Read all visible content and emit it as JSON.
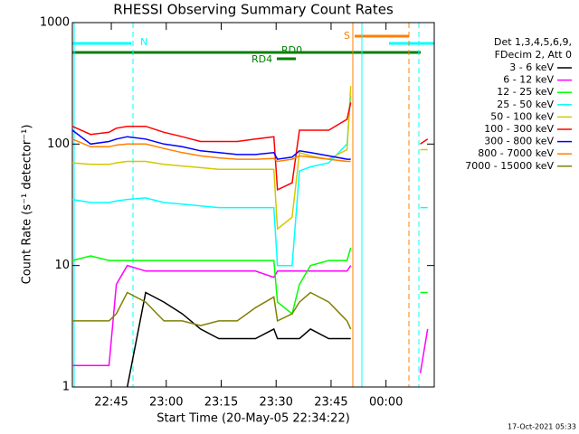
{
  "chart_data": {
    "type": "line",
    "title": "RHESSI Observing Summary Count Rates",
    "x_label": "Start Time (20-May-05 22:34:22)",
    "y_label": "Count Rate (s⁻¹ detector⁻¹)",
    "yscale": "log",
    "ylim": [
      1,
      1000
    ],
    "yticks": [
      1,
      10,
      100,
      1000
    ],
    "xlim": [
      0,
      98.8
    ],
    "xticks": [
      {
        "value": 10.63,
        "label": "22:45"
      },
      {
        "value": 25.63,
        "label": "23:00"
      },
      {
        "value": 40.63,
        "label": "23:15"
      },
      {
        "value": 55.63,
        "label": "23:30"
      },
      {
        "value": 70.63,
        "label": "23:45"
      },
      {
        "value": 85.63,
        "label": "00:00"
      }
    ],
    "x": [
      0,
      5,
      10,
      12,
      15,
      20,
      25,
      30,
      35,
      40,
      45,
      50,
      55,
      56,
      60,
      62,
      65,
      70,
      75,
      76,
      85,
      95,
      97
    ],
    "legend_header": [
      "Det 1,3,4,5,6,9,",
      "FDecim 2, Att 0"
    ],
    "annotations": [
      "N",
      "S",
      "RD4",
      "RD0"
    ],
    "footer": "17-Oct-2021 05:33",
    "series": [
      {
        "name": "3 - 6 keV",
        "color": "#000000",
        "values": [
          null,
          null,
          null,
          null,
          1,
          6,
          5,
          4,
          3,
          2.5,
          2.5,
          2.5,
          3,
          2.5,
          2.5,
          2.5,
          3,
          2.5,
          2.5,
          2.5,
          null,
          null,
          null
        ]
      },
      {
        "name": "6 - 12 keV",
        "color": "#ff00ff",
        "values": [
          1.5,
          1.5,
          1.5,
          7,
          10,
          9,
          9,
          9,
          9,
          9,
          9,
          9,
          8,
          9,
          9,
          9,
          9,
          9,
          9,
          10,
          null,
          1.3,
          3
        ]
      },
      {
        "name": "12 - 25 keV",
        "color": "#00ff00",
        "values": [
          11,
          12,
          11,
          11,
          11,
          11,
          11,
          11,
          11,
          11,
          11,
          11,
          11,
          5,
          4,
          7,
          10,
          11,
          11,
          14,
          null,
          6,
          6
        ]
      },
      {
        "name": "25 - 50 keV",
        "color": "#00ffff",
        "values": [
          35,
          33,
          33,
          34,
          35,
          36,
          33,
          32,
          31,
          30,
          30,
          30,
          30,
          10,
          10,
          60,
          65,
          70,
          100,
          250,
          null,
          30,
          30
        ]
      },
      {
        "name": "50 - 100 keV",
        "color": "#d4c800",
        "values": [
          70,
          68,
          68,
          70,
          72,
          72,
          68,
          66,
          64,
          62,
          62,
          62,
          62,
          20,
          25,
          85,
          80,
          75,
          90,
          300,
          null,
          90,
          90
        ]
      },
      {
        "name": "100 - 300 keV",
        "color": "#ff0000",
        "values": [
          140,
          120,
          125,
          135,
          140,
          140,
          125,
          115,
          105,
          105,
          105,
          110,
          115,
          42,
          48,
          130,
          130,
          130,
          160,
          220,
          null,
          100,
          110
        ]
      },
      {
        "name": "300 - 800 keV",
        "color": "#0000ff",
        "values": [
          130,
          100,
          105,
          110,
          115,
          110,
          100,
          95,
          88,
          85,
          82,
          82,
          85,
          75,
          78,
          88,
          85,
          80,
          75,
          75,
          null,
          null,
          null
        ]
      },
      {
        "name": "800 - 7000 keV",
        "color": "#ff8000",
        "values": [
          110,
          95,
          95,
          98,
          100,
          100,
          92,
          85,
          80,
          77,
          75,
          75,
          76,
          72,
          75,
          80,
          78,
          75,
          72,
          72,
          null,
          null,
          null
        ]
      },
      {
        "name": "7000 - 15000 keV",
        "color": "#808000",
        "values": [
          3.5,
          3.5,
          3.5,
          4,
          6,
          5,
          3.5,
          3.5,
          3.2,
          3.5,
          3.5,
          4.5,
          5.5,
          3.5,
          4,
          5,
          6,
          5,
          3.5,
          3,
          null,
          null,
          null
        ]
      }
    ]
  }
}
